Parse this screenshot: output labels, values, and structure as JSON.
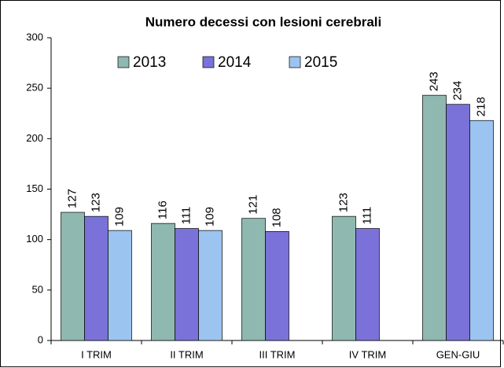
{
  "chart_data": {
    "type": "bar",
    "title": "Numero decessi con lesioni cerebrali",
    "categories": [
      "I TRIM",
      "II TRIM",
      "III TRIM",
      "IV TRIM",
      "GEN-GIU"
    ],
    "series": [
      {
        "name": "2013",
        "color": "#8fb8b0",
        "values": [
          127,
          116,
          121,
          123,
          243
        ]
      },
      {
        "name": "2014",
        "color": "#7a72d8",
        "values": [
          123,
          111,
          108,
          111,
          234
        ]
      },
      {
        "name": "2015",
        "color": "#9cc4f0",
        "values": [
          109,
          109,
          null,
          null,
          218
        ]
      }
    ],
    "ylim": [
      0,
      300
    ],
    "yticks": [
      0,
      50,
      100,
      150,
      200,
      250,
      300
    ],
    "grid": false
  }
}
